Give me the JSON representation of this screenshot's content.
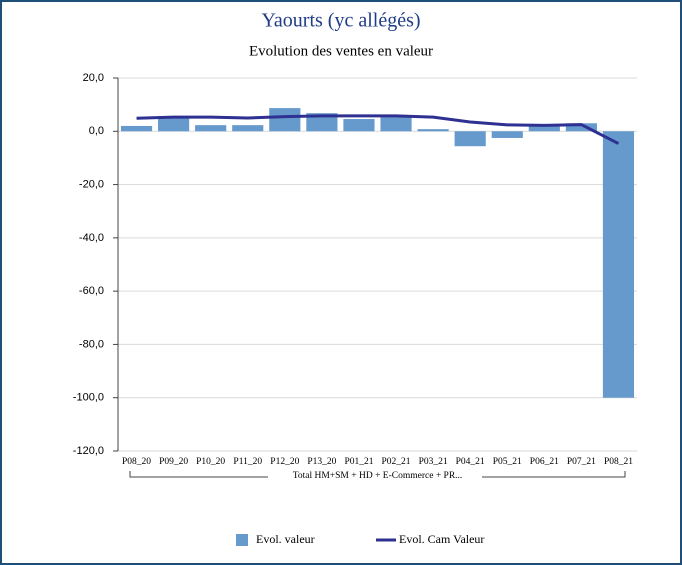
{
  "chart_data": {
    "type": "bar",
    "title": "Yaourts (yc allégés)",
    "subtitle": "Evolution des ventes en valeur",
    "categories": [
      "P08_20",
      "P09_20",
      "P10_20",
      "P11_20",
      "P12_20",
      "P13_20",
      "P01_21",
      "P02_21",
      "P03_21",
      "P04_21",
      "P05_21",
      "P06_21",
      "P07_21",
      "P08_21"
    ],
    "category_group": "Total HM+SM + HD + E-Commerce + PR...",
    "series": [
      {
        "name": "Evol.  valeur",
        "type": "bar",
        "color": "#6699cc",
        "values": [
          2.0,
          5.0,
          2.3,
          2.3,
          8.7,
          6.8,
          4.6,
          6.0,
          0.8,
          -5.6,
          -2.5,
          2.3,
          3.0,
          -100.0
        ]
      },
      {
        "name": "Evol. Cam Valeur",
        "type": "line",
        "color": "#2e3192",
        "values": [
          4.9,
          5.3,
          5.3,
          5.0,
          5.5,
          5.8,
          5.8,
          5.8,
          5.3,
          3.5,
          2.4,
          2.2,
          2.5,
          -4.6
        ]
      }
    ],
    "ylim": [
      -120,
      20
    ],
    "yticks": [
      {
        "value": -120,
        "label": "-120,0"
      },
      {
        "value": -100,
        "label": "-100,0"
      },
      {
        "value": -80,
        "label": "-80,0"
      },
      {
        "value": -60,
        "label": "-60,0"
      },
      {
        "value": -40,
        "label": "-40,0"
      },
      {
        "value": -20,
        "label": "-20,0"
      },
      {
        "value": 0,
        "label": "0,0"
      },
      {
        "value": 20,
        "label": "20,0"
      }
    ],
    "grid": true,
    "legend": "bottom"
  }
}
